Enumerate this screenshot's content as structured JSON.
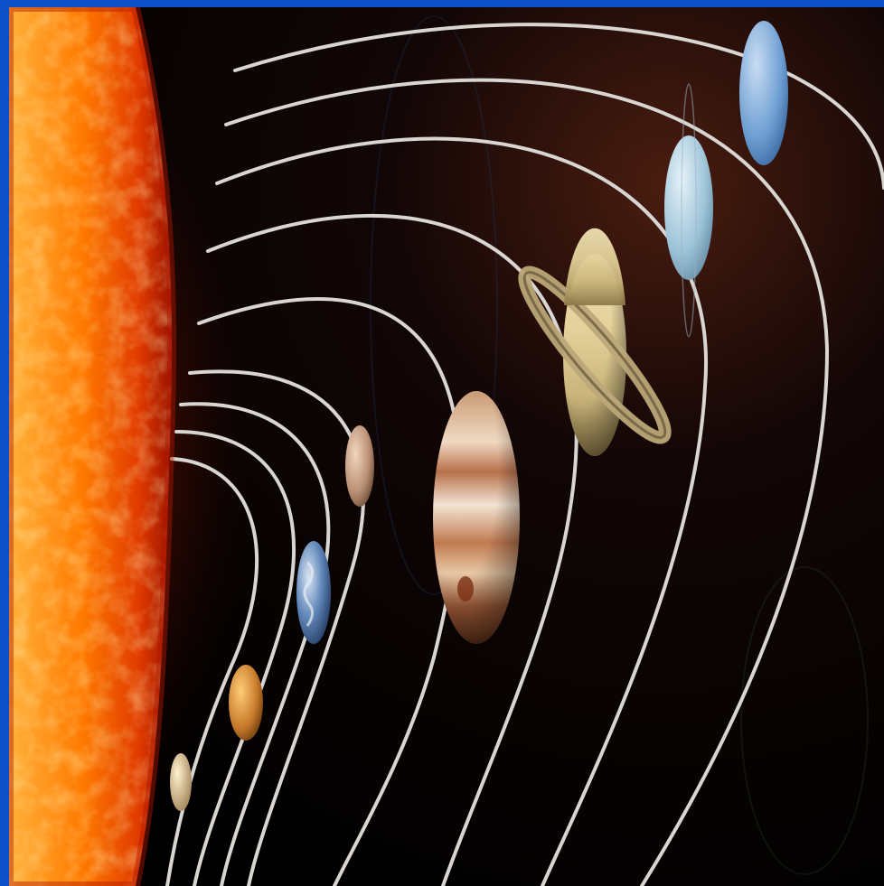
{
  "image": {
    "subject": "solar-system",
    "frame_color": "#0b4fc9",
    "colors": {
      "sun": "#ff7a00",
      "sun_core": "#ffd37a",
      "sun_dark": "#b11800",
      "space": "#000000",
      "orbit": "#d9d6d2"
    },
    "bodies": [
      {
        "name": "sun"
      },
      {
        "name": "mercury"
      },
      {
        "name": "venus"
      },
      {
        "name": "earth"
      },
      {
        "name": "mars"
      },
      {
        "name": "jupiter"
      },
      {
        "name": "saturn"
      },
      {
        "name": "uranus"
      },
      {
        "name": "neptune"
      }
    ]
  }
}
